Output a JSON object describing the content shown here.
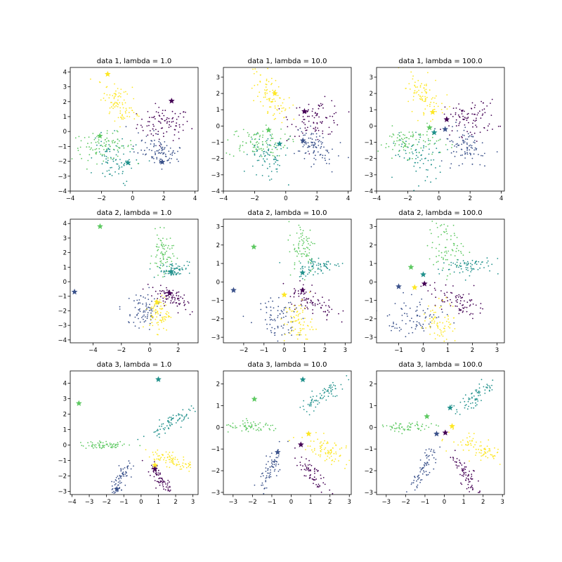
{
  "chart_data": [
    {
      "type": "scatter",
      "title": "data 1, lambda = 1.0",
      "xlim": [
        -4,
        4.2
      ],
      "ylim": [
        -4,
        4.3
      ],
      "xticks": [
        -4,
        -2,
        0,
        2,
        4
      ],
      "yticks": [
        -4,
        -3,
        -2,
        -1,
        0,
        1,
        2,
        3,
        4
      ],
      "clusters": [
        {
          "color": "#440154",
          "center": [
            2.0,
            0.5
          ],
          "spread": [
            0.85,
            0.55
          ],
          "angle": 0,
          "count": 90
        },
        {
          "color": "#3b528b",
          "center": [
            1.7,
            -1.3
          ],
          "spread": [
            0.75,
            0.5
          ],
          "angle": -25,
          "count": 90
        },
        {
          "color": "#21918c",
          "center": [
            -1.2,
            -1.8
          ],
          "spread": [
            0.6,
            0.8
          ],
          "angle": 40,
          "count": 80
        },
        {
          "color": "#5ec962",
          "center": [
            -1.9,
            -1.0
          ],
          "spread": [
            1.0,
            0.45
          ],
          "angle": 0,
          "count": 90
        },
        {
          "color": "#fde725",
          "center": [
            -1.0,
            1.8
          ],
          "spread": [
            0.9,
            0.45
          ],
          "angle": -55,
          "count": 90
        }
      ],
      "centroids": [
        {
          "color": "#440154",
          "x": 2.5,
          "y": 2.05
        },
        {
          "color": "#3b528b",
          "x": 1.9,
          "y": -2.05
        },
        {
          "color": "#21918c",
          "x": -0.3,
          "y": -2.1
        },
        {
          "color": "#5ec962",
          "x": -2.1,
          "y": -0.3
        },
        {
          "color": "#fde725",
          "x": -1.6,
          "y": 3.85
        }
      ]
    },
    {
      "type": "scatter",
      "title": "data 1, lambda = 10.0",
      "xlim": [
        -4,
        4.2
      ],
      "ylim": [
        -4,
        3.6
      ],
      "xticks": [
        -4,
        -2,
        0,
        2,
        4
      ],
      "yticks": [
        -4,
        -3,
        -2,
        -1,
        0,
        1,
        2,
        3
      ],
      "clusters": [
        {
          "color": "#440154",
          "center": [
            2.0,
            0.5
          ],
          "spread": [
            0.85,
            0.55
          ],
          "angle": 0,
          "count": 90
        },
        {
          "color": "#3b528b",
          "center": [
            1.7,
            -1.3
          ],
          "spread": [
            0.75,
            0.5
          ],
          "angle": -25,
          "count": 90
        },
        {
          "color": "#21918c",
          "center": [
            -1.2,
            -1.8
          ],
          "spread": [
            0.6,
            0.8
          ],
          "angle": 40,
          "count": 80
        },
        {
          "color": "#5ec962",
          "center": [
            -1.9,
            -1.0
          ],
          "spread": [
            1.0,
            0.45
          ],
          "angle": 0,
          "count": 90
        },
        {
          "color": "#fde725",
          "center": [
            -1.0,
            1.8
          ],
          "spread": [
            0.9,
            0.45
          ],
          "angle": -55,
          "count": 90
        }
      ],
      "centroids": [
        {
          "color": "#440154",
          "x": 1.2,
          "y": 0.9
        },
        {
          "color": "#3b528b",
          "x": 1.1,
          "y": -0.9
        },
        {
          "color": "#21918c",
          "x": -0.4,
          "y": -1.1
        },
        {
          "color": "#5ec962",
          "x": -1.1,
          "y": -0.25
        },
        {
          "color": "#fde725",
          "x": -0.7,
          "y": 2.0
        }
      ]
    },
    {
      "type": "scatter",
      "title": "data 1, lambda = 100.0",
      "xlim": [
        -4,
        4.2
      ],
      "ylim": [
        -4,
        3.6
      ],
      "xticks": [
        -4,
        -2,
        0,
        2,
        4
      ],
      "yticks": [
        -4,
        -3,
        -2,
        -1,
        0,
        1,
        2,
        3
      ],
      "clusters": [
        {
          "color": "#440154",
          "center": [
            2.0,
            0.5
          ],
          "spread": [
            0.85,
            0.55
          ],
          "angle": 0,
          "count": 90
        },
        {
          "color": "#3b528b",
          "center": [
            1.7,
            -1.3
          ],
          "spread": [
            0.75,
            0.5
          ],
          "angle": -25,
          "count": 90
        },
        {
          "color": "#21918c",
          "center": [
            -1.2,
            -1.8
          ],
          "spread": [
            0.6,
            0.8
          ],
          "angle": 40,
          "count": 80
        },
        {
          "color": "#5ec962",
          "center": [
            -1.9,
            -1.0
          ],
          "spread": [
            1.0,
            0.45
          ],
          "angle": 0,
          "count": 90
        },
        {
          "color": "#fde725",
          "center": [
            -1.0,
            1.8
          ],
          "spread": [
            0.9,
            0.45
          ],
          "angle": -55,
          "count": 90
        }
      ],
      "centroids": [
        {
          "color": "#440154",
          "x": 0.5,
          "y": 0.4
        },
        {
          "color": "#3b528b",
          "x": 0.4,
          "y": -0.2
        },
        {
          "color": "#21918c",
          "x": -0.3,
          "y": -0.4
        },
        {
          "color": "#5ec962",
          "x": -0.6,
          "y": -0.1
        },
        {
          "color": "#fde725",
          "x": -0.4,
          "y": 0.85
        }
      ]
    },
    {
      "type": "scatter",
      "title": "data 2, lambda = 1.0",
      "xlim": [
        -5.6,
        3.4
      ],
      "ylim": [
        -4.2,
        4.3
      ],
      "xticks": [
        -4,
        -2,
        0,
        2
      ],
      "yticks": [
        -4,
        -3,
        -2,
        -1,
        0,
        1,
        2,
        3,
        4
      ],
      "clusters": [
        {
          "color": "#5ec962",
          "center": [
            0.9,
            1.9
          ],
          "spread": [
            0.35,
            0.7
          ],
          "angle": 0,
          "count": 75
        },
        {
          "color": "#21918c",
          "center": [
            1.7,
            0.85
          ],
          "spread": [
            0.55,
            0.25
          ],
          "angle": 10,
          "count": 70
        },
        {
          "color": "#440154",
          "center": [
            1.3,
            -1.0
          ],
          "spread": [
            0.7,
            0.3
          ],
          "angle": -30,
          "count": 80
        },
        {
          "color": "#3b528b",
          "center": [
            -0.4,
            -2.0
          ],
          "spread": [
            0.55,
            0.6
          ],
          "angle": 30,
          "count": 80
        },
        {
          "color": "#fde725",
          "center": [
            0.7,
            -2.2
          ],
          "spread": [
            0.35,
            0.6
          ],
          "angle": 0,
          "count": 75
        }
      ],
      "centroids": [
        {
          "color": "#5ec962",
          "x": -3.5,
          "y": 3.8
        },
        {
          "color": "#21918c",
          "x": 1.5,
          "y": 0.7
        },
        {
          "color": "#440154",
          "x": 1.4,
          "y": -0.8
        },
        {
          "color": "#3b528b",
          "x": -5.3,
          "y": -0.7
        },
        {
          "color": "#fde725",
          "x": 0.5,
          "y": -1.4
        }
      ]
    },
    {
      "type": "scatter",
      "title": "data 2, lambda = 10.0",
      "xlim": [
        -3.0,
        3.3
      ],
      "ylim": [
        -3.3,
        3.4
      ],
      "xticks": [
        -2,
        -1,
        0,
        1,
        2,
        3
      ],
      "yticks": [
        -3,
        -2,
        -1,
        0,
        1,
        2,
        3
      ],
      "clusters": [
        {
          "color": "#5ec962",
          "center": [
            0.9,
            1.9
          ],
          "spread": [
            0.35,
            0.7
          ],
          "angle": 0,
          "count": 75
        },
        {
          "color": "#21918c",
          "center": [
            1.7,
            0.85
          ],
          "spread": [
            0.55,
            0.25
          ],
          "angle": 10,
          "count": 70
        },
        {
          "color": "#440154",
          "center": [
            1.3,
            -1.0
          ],
          "spread": [
            0.7,
            0.3
          ],
          "angle": -30,
          "count": 80
        },
        {
          "color": "#3b528b",
          "center": [
            -0.4,
            -2.0
          ],
          "spread": [
            0.55,
            0.6
          ],
          "angle": 30,
          "count": 80
        },
        {
          "color": "#fde725",
          "center": [
            0.7,
            -2.2
          ],
          "spread": [
            0.35,
            0.6
          ],
          "angle": 0,
          "count": 75
        }
      ],
      "centroids": [
        {
          "color": "#5ec962",
          "x": -1.5,
          "y": 1.9
        },
        {
          "color": "#21918c",
          "x": 0.9,
          "y": 0.5
        },
        {
          "color": "#440154",
          "x": 0.9,
          "y": -0.45
        },
        {
          "color": "#3b528b",
          "x": -2.5,
          "y": -0.45
        },
        {
          "color": "#fde725",
          "x": 0.0,
          "y": -0.7
        }
      ]
    },
    {
      "type": "scatter",
      "title": "data 2, lambda = 100.0",
      "xlim": [
        -1.9,
        3.3
      ],
      "ylim": [
        -3.3,
        3.4
      ],
      "xticks": [
        -1,
        0,
        1,
        2,
        3
      ],
      "yticks": [
        -3,
        -2,
        -1,
        0,
        1,
        2,
        3
      ],
      "clusters": [
        {
          "color": "#5ec962",
          "center": [
            0.9,
            1.9
          ],
          "spread": [
            0.35,
            0.7
          ],
          "angle": 0,
          "count": 75
        },
        {
          "color": "#21918c",
          "center": [
            1.7,
            0.85
          ],
          "spread": [
            0.55,
            0.25
          ],
          "angle": 10,
          "count": 70
        },
        {
          "color": "#440154",
          "center": [
            1.3,
            -1.0
          ],
          "spread": [
            0.7,
            0.3
          ],
          "angle": -30,
          "count": 80
        },
        {
          "color": "#3b528b",
          "center": [
            -0.4,
            -2.0
          ],
          "spread": [
            0.55,
            0.6
          ],
          "angle": 30,
          "count": 80
        },
        {
          "color": "#fde725",
          "center": [
            0.7,
            -2.2
          ],
          "spread": [
            0.35,
            0.6
          ],
          "angle": 0,
          "count": 75
        }
      ],
      "centroids": [
        {
          "color": "#5ec962",
          "x": -0.5,
          "y": 0.8
        },
        {
          "color": "#21918c",
          "x": 0.0,
          "y": 0.4
        },
        {
          "color": "#440154",
          "x": 0.05,
          "y": -0.1
        },
        {
          "color": "#3b528b",
          "x": -1.0,
          "y": -0.25
        },
        {
          "color": "#fde725",
          "x": -0.35,
          "y": -0.3
        }
      ]
    },
    {
      "type": "scatter",
      "title": "data 3, lambda = 1.0",
      "xlim": [
        -4.1,
        3.3
      ],
      "ylim": [
        -3.2,
        4.8
      ],
      "xticks": [
        -4,
        -3,
        -2,
        -1,
        0,
        1,
        2,
        3
      ],
      "yticks": [
        -3,
        -2,
        -1,
        0,
        1,
        2,
        3,
        4
      ],
      "clusters": [
        {
          "color": "#5ec962",
          "center": [
            -2.0,
            0.0
          ],
          "spread": [
            0.75,
            0.12
          ],
          "angle": 0,
          "count": 65
        },
        {
          "color": "#21918c",
          "center": [
            1.6,
            1.4
          ],
          "spread": [
            0.7,
            0.2
          ],
          "angle": 35,
          "count": 70
        },
        {
          "color": "#fde725",
          "center": [
            1.8,
            -1.0
          ],
          "spread": [
            0.7,
            0.25
          ],
          "angle": -20,
          "count": 80
        },
        {
          "color": "#440154",
          "center": [
            1.1,
            -2.2
          ],
          "spread": [
            0.55,
            0.17
          ],
          "angle": -55,
          "count": 70
        },
        {
          "color": "#3b528b",
          "center": [
            -1.1,
            -2.0
          ],
          "spread": [
            0.6,
            0.18
          ],
          "angle": 60,
          "count": 70
        }
      ],
      "centroids": [
        {
          "color": "#5ec962",
          "x": -3.6,
          "y": 2.7
        },
        {
          "color": "#21918c",
          "x": 1.0,
          "y": 4.25
        },
        {
          "color": "#fde725",
          "x": 0.8,
          "y": -1.3
        },
        {
          "color": "#440154",
          "x": 0.8,
          "y": -1.55
        },
        {
          "color": "#3b528b",
          "x": -1.4,
          "y": -2.85
        }
      ]
    },
    {
      "type": "scatter",
      "title": "data 3, lambda = 10.0",
      "xlim": [
        -3.5,
        3.1
      ],
      "ylim": [
        -3.1,
        2.6
      ],
      "xticks": [
        -3,
        -2,
        -1,
        0,
        1,
        2,
        3
      ],
      "yticks": [
        -3,
        -2,
        -1,
        0,
        1,
        2
      ],
      "clusters": [
        {
          "color": "#5ec962",
          "center": [
            -2.0,
            0.0
          ],
          "spread": [
            0.75,
            0.12
          ],
          "angle": 0,
          "count": 65
        },
        {
          "color": "#21918c",
          "center": [
            1.6,
            1.4
          ],
          "spread": [
            0.7,
            0.2
          ],
          "angle": 35,
          "count": 70
        },
        {
          "color": "#fde725",
          "center": [
            1.8,
            -1.0
          ],
          "spread": [
            0.7,
            0.25
          ],
          "angle": -20,
          "count": 80
        },
        {
          "color": "#440154",
          "center": [
            1.1,
            -2.2
          ],
          "spread": [
            0.55,
            0.17
          ],
          "angle": -55,
          "count": 70
        },
        {
          "color": "#3b528b",
          "center": [
            -1.1,
            -2.0
          ],
          "spread": [
            0.6,
            0.18
          ],
          "angle": 60,
          "count": 70
        }
      ],
      "centroids": [
        {
          "color": "#5ec962",
          "x": -1.9,
          "y": 1.3
        },
        {
          "color": "#21918c",
          "x": 0.6,
          "y": 2.2
        },
        {
          "color": "#fde725",
          "x": 0.9,
          "y": -0.3
        },
        {
          "color": "#440154",
          "x": 0.5,
          "y": -0.8
        },
        {
          "color": "#3b528b",
          "x": -0.7,
          "y": -1.15
        }
      ]
    },
    {
      "type": "scatter",
      "title": "data 3, lambda = 100.0",
      "xlim": [
        -3.5,
        3.1
      ],
      "ylim": [
        -3.1,
        2.6
      ],
      "xticks": [
        -3,
        -2,
        -1,
        0,
        1,
        2,
        3
      ],
      "yticks": [
        -3,
        -2,
        -1,
        0,
        1,
        2
      ],
      "clusters": [
        {
          "color": "#5ec962",
          "center": [
            -2.0,
            0.0
          ],
          "spread": [
            0.75,
            0.12
          ],
          "angle": 0,
          "count": 65
        },
        {
          "color": "#21918c",
          "center": [
            1.6,
            1.4
          ],
          "spread": [
            0.7,
            0.2
          ],
          "angle": 35,
          "count": 70
        },
        {
          "color": "#fde725",
          "center": [
            1.8,
            -1.0
          ],
          "spread": [
            0.7,
            0.25
          ],
          "angle": -20,
          "count": 80
        },
        {
          "color": "#440154",
          "center": [
            1.1,
            -2.2
          ],
          "spread": [
            0.55,
            0.17
          ],
          "angle": -55,
          "count": 70
        },
        {
          "color": "#3b528b",
          "center": [
            -1.1,
            -2.0
          ],
          "spread": [
            0.6,
            0.18
          ],
          "angle": 60,
          "count": 70
        }
      ],
      "centroids": [
        {
          "color": "#5ec962",
          "x": -0.9,
          "y": 0.5
        },
        {
          "color": "#21918c",
          "x": 0.3,
          "y": 0.9
        },
        {
          "color": "#fde725",
          "x": 0.4,
          "y": 0.05
        },
        {
          "color": "#440154",
          "x": 0.05,
          "y": -0.25
        },
        {
          "color": "#3b528b",
          "x": -0.4,
          "y": -0.3
        }
      ]
    }
  ]
}
